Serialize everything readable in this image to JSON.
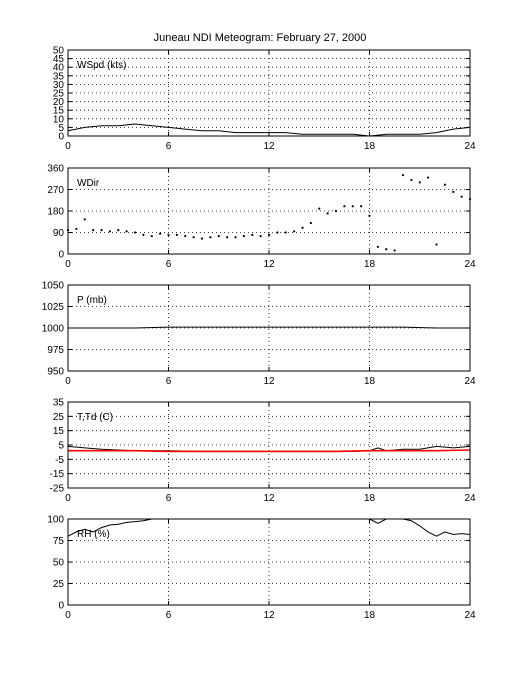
{
  "title": "Juneau NDI Meteogram:  February 27, 2000",
  "colors": {
    "frame": "#000000",
    "series": "#000000",
    "dewpoint": "#ff0000",
    "grid": "#000000"
  },
  "chart_data": [
    {
      "type": "line",
      "label": "WSpd (kts)",
      "xlim": [
        0,
        24
      ],
      "ylim": [
        0,
        50
      ],
      "xticks": [
        0,
        6,
        12,
        18,
        24
      ],
      "yticks": [
        0,
        5,
        10,
        15,
        20,
        25,
        30,
        35,
        40,
        45,
        50
      ],
      "grid": true,
      "series": [
        {
          "x": [
            0,
            1,
            2,
            3,
            4,
            5,
            6,
            7,
            8,
            9,
            10,
            11,
            12,
            13,
            14,
            15,
            16,
            17,
            18,
            19,
            20,
            21,
            22,
            23,
            24
          ],
          "y": [
            3,
            5,
            6,
            6,
            7,
            6,
            5,
            4,
            3,
            3,
            2,
            2,
            2,
            2,
            1,
            1,
            1,
            1,
            0,
            1,
            1,
            1,
            2,
            4,
            5
          ]
        }
      ]
    },
    {
      "type": "scatter",
      "label": "WDir",
      "xlim": [
        0,
        24
      ],
      "ylim": [
        0,
        360
      ],
      "xticks": [
        0,
        6,
        12,
        18,
        24
      ],
      "yticks": [
        0,
        90,
        180,
        270,
        360
      ],
      "grid": true,
      "series": [
        {
          "x": [
            0,
            0.5,
            1,
            1.5,
            2,
            2.5,
            3,
            3.5,
            4,
            4.5,
            5,
            5.5,
            6,
            6.5,
            7,
            7.5,
            8,
            8.5,
            9,
            9.5,
            10,
            10.5,
            11,
            11.5,
            12,
            12.5,
            13,
            13.5,
            14,
            14.5,
            15,
            15.5,
            16,
            16.5,
            17,
            17.5,
            18,
            18.5,
            19,
            19.5,
            20,
            20.5,
            21,
            21.5,
            22,
            22.5,
            23,
            23.5,
            24
          ],
          "y": [
            100,
            105,
            145,
            100,
            100,
            95,
            100,
            95,
            90,
            80,
            75,
            85,
            80,
            80,
            75,
            70,
            65,
            70,
            75,
            70,
            70,
            75,
            80,
            75,
            80,
            90,
            90,
            95,
            110,
            130,
            190,
            170,
            180,
            200,
            200,
            200,
            160,
            30,
            20,
            15,
            330,
            310,
            300,
            320,
            40,
            290,
            260,
            240,
            230
          ]
        }
      ]
    },
    {
      "type": "line",
      "label": "P (mb)",
      "xlim": [
        0,
        24
      ],
      "ylim": [
        950,
        1050
      ],
      "xticks": [
        0,
        6,
        12,
        18,
        24
      ],
      "yticks": [
        950,
        975,
        1000,
        1025,
        1050
      ],
      "grid": true,
      "series": [
        {
          "x": [
            0,
            2,
            4,
            6,
            8,
            10,
            12,
            14,
            16,
            18,
            20,
            22,
            24
          ],
          "y": [
            1000,
            1000,
            1000,
            1001,
            1001,
            1001,
            1001,
            1001,
            1001,
            1001,
            1001,
            1000,
            1000
          ]
        }
      ]
    },
    {
      "type": "line",
      "label": "T,Td (C)",
      "xlim": [
        0,
        24
      ],
      "ylim": [
        -25,
        35
      ],
      "xticks": [
        0,
        6,
        12,
        18,
        24
      ],
      "yticks": [
        -25,
        -15,
        -5,
        5,
        15,
        25,
        35
      ],
      "grid": true,
      "series": [
        {
          "x": [
            0,
            1,
            2,
            3,
            4,
            5,
            6,
            8,
            10,
            12,
            14,
            16,
            17,
            18,
            18.5,
            19,
            20,
            21,
            22,
            23,
            24
          ],
          "y": [
            4,
            3,
            2,
            1.5,
            1,
            1,
            1,
            0.5,
            0.5,
            0.5,
            0.5,
            0.5,
            0.5,
            1,
            3,
            1,
            2,
            2,
            4,
            3,
            4
          ]
        },
        {
          "x": [
            0,
            2,
            4,
            6,
            8,
            10,
            12,
            14,
            16,
            18,
            20,
            22,
            24
          ],
          "y": [
            1,
            1,
            1,
            0.5,
            0.5,
            0.5,
            0.5,
            0.5,
            0.5,
            1,
            1,
            1,
            1.5
          ]
        }
      ]
    },
    {
      "type": "line",
      "label": "RH (%)",
      "xlim": [
        0,
        24
      ],
      "ylim": [
        0,
        100
      ],
      "xticks": [
        0,
        6,
        12,
        18,
        24
      ],
      "yticks": [
        0,
        25,
        50,
        75,
        100
      ],
      "grid": true,
      "series": [
        {
          "x": [
            0,
            0.5,
            1,
            1.5,
            2,
            2.5,
            3,
            3.5,
            4,
            4.5,
            5,
            5.5,
            6
          ],
          "y": [
            80,
            85,
            88,
            85,
            90,
            93,
            94,
            96,
            97,
            98,
            100,
            100,
            100
          ]
        },
        {
          "x": [
            18,
            18.5,
            19,
            19.5,
            20,
            20.5,
            21,
            21.5,
            22,
            22.5,
            23,
            23.5,
            24
          ],
          "y": [
            100,
            95,
            100,
            100,
            100,
            98,
            92,
            85,
            80,
            85,
            82,
            83,
            82
          ]
        }
      ]
    }
  ]
}
